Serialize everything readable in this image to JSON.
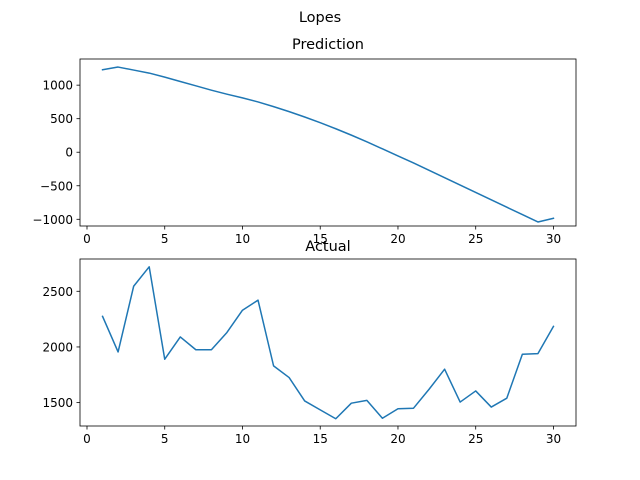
{
  "figure": {
    "suptitle": "Lopes"
  },
  "colors": {
    "line": "#1f77b4",
    "axis": "#000000",
    "background": "#ffffff"
  },
  "chart_data": [
    {
      "type": "line",
      "title": "Prediction",
      "xlabel": "",
      "ylabel": "",
      "xlim": [
        -0.45,
        31.45
      ],
      "ylim": [
        -1100,
        1390
      ],
      "xticks": [
        0,
        5,
        10,
        15,
        20,
        25,
        30
      ],
      "yticks": [
        -1000,
        -500,
        0,
        500,
        1000
      ],
      "grid": false,
      "x": [
        1,
        2,
        3,
        4,
        5,
        6,
        7,
        8,
        9,
        10,
        11,
        12,
        13,
        14,
        15,
        16,
        17,
        18,
        19,
        20,
        21,
        22,
        23,
        24,
        25,
        26,
        27,
        28,
        29,
        30
      ],
      "series": [
        {
          "values": [
            1230,
            1270,
            1225,
            1180,
            1120,
            1055,
            990,
            925,
            865,
            810,
            750,
            680,
            605,
            525,
            440,
            350,
            255,
            155,
            50,
            -55,
            -160,
            -270,
            -380,
            -490,
            -600,
            -710,
            -820,
            -930,
            -1040,
            -985
          ]
        }
      ]
    },
    {
      "type": "line",
      "title": "Actual",
      "xlabel": "",
      "ylabel": "",
      "xlim": [
        -0.45,
        31.45
      ],
      "ylim": [
        1290,
        2790
      ],
      "xticks": [
        0,
        5,
        10,
        15,
        20,
        25,
        30
      ],
      "yticks": [
        1500,
        2000,
        2500
      ],
      "grid": false,
      "x": [
        1,
        2,
        3,
        4,
        5,
        6,
        7,
        8,
        9,
        10,
        11,
        12,
        13,
        14,
        15,
        16,
        17,
        18,
        19,
        20,
        21,
        22,
        23,
        24,
        25,
        26,
        27,
        28,
        29,
        30
      ],
      "series": [
        {
          "values": [
            2275,
            1955,
            2545,
            2720,
            1890,
            2090,
            1975,
            1975,
            2130,
            2330,
            2420,
            1830,
            1725,
            1515,
            1435,
            1355,
            1495,
            1520,
            1360,
            1445,
            1450,
            1620,
            1800,
            1505,
            1605,
            1460,
            1540,
            1935,
            1940,
            2185
          ]
        }
      ]
    }
  ]
}
